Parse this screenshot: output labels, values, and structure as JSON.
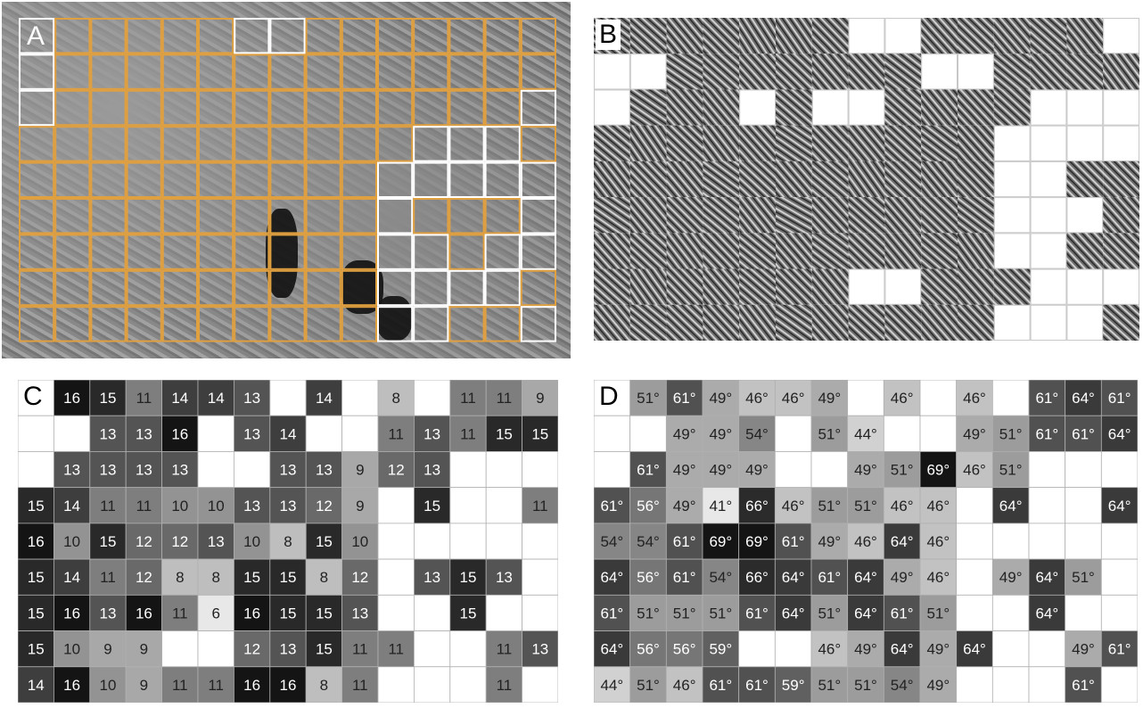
{
  "panels": {
    "A": {
      "label": "A"
    },
    "B": {
      "label": "B"
    },
    "C": {
      "label": "C"
    },
    "D": {
      "label": "D"
    }
  },
  "grid": {
    "rows": 9,
    "cols": 15
  },
  "panelA_outline": [
    "WOOOOOWWOOOOOOO",
    "WOOOOOOOOOOOOOO",
    "WOOOOOOOOOOOOOW",
    "OOOOOOOOOOOWWWO",
    "OOOOOOOOOOWWWWW",
    "OOOOOOOOOOWOOOW",
    "OOOOOOOOOOWWOWW",
    "OOOOOOOOOOWWWWO",
    "OOOOOOOOOOWWOOW"
  ],
  "panelB_mask": [
    "111111100111110",
    "001111111001111",
    "011101001111000",
    "111111111110000",
    "111111111110011",
    "111111111110001",
    "111111111110011",
    "111111100111000",
    "111111111110001"
  ],
  "panelB_angles": [
    [
      -52,
      -48,
      -40,
      -45,
      -33,
      -35,
      -44,
      -60,
      -50,
      -42,
      -46,
      -41,
      -48,
      -39,
      -44
    ],
    [
      -40,
      -38,
      -55,
      -48,
      -42,
      -46,
      -41,
      -43,
      -52,
      -47,
      -39,
      -50,
      -44,
      -45,
      -37
    ],
    [
      -45,
      -55,
      -42,
      -40,
      -44,
      -49,
      -51,
      -46,
      -48,
      -40,
      -43,
      -47,
      -45,
      -45,
      -45
    ],
    [
      -50,
      -35,
      -46,
      -38,
      -42,
      -55,
      -44,
      -40,
      -47,
      -52,
      -42,
      -39,
      -45,
      -45,
      -45
    ],
    [
      -38,
      -44,
      -40,
      -53,
      -47,
      -41,
      -49,
      -36,
      -46,
      -40,
      -44,
      -45,
      -45,
      -45,
      -45
    ],
    [
      -55,
      -40,
      -45,
      -50,
      -39,
      -60,
      -43,
      -48,
      -41,
      -46,
      -52,
      -38,
      -44,
      -45,
      -42
    ],
    [
      -42,
      -47,
      -38,
      -44,
      -50,
      -41,
      -52,
      -46,
      -40,
      -49,
      -37,
      -45,
      -45,
      -43,
      -45
    ],
    [
      -48,
      -36,
      -44,
      -41,
      -49,
      -45,
      -40,
      -45,
      -45,
      -46,
      -42,
      -45,
      -45,
      -45,
      -40
    ],
    [
      -40,
      -50,
      -46,
      -43,
      -38,
      -54,
      -42,
      -47,
      -45,
      -41,
      -44,
      -45,
      -45,
      -45,
      -48
    ]
  ],
  "panelC_values": [
    [
      "",
      "16",
      "15",
      "11",
      "14",
      "14",
      "13",
      "",
      "14",
      "",
      "8",
      "",
      "11",
      "11",
      "9"
    ],
    [
      "",
      "",
      "13",
      "13",
      "16",
      "",
      "13",
      "14",
      "",
      "",
      "11",
      "13",
      "11",
      "15",
      "15"
    ],
    [
      "",
      "13",
      "13",
      "13",
      "13",
      "",
      "",
      "13",
      "13",
      "9",
      "12",
      "13",
      "",
      "",
      ""
    ],
    [
      "15",
      "14",
      "11",
      "11",
      "10",
      "10",
      "13",
      "13",
      "12",
      "9",
      "",
      "15",
      "",
      "",
      "11"
    ],
    [
      "16",
      "10",
      "15",
      "12",
      "12",
      "13",
      "10",
      "8",
      "15",
      "10",
      "",
      "",
      "",
      "",
      ""
    ],
    [
      "15",
      "14",
      "11",
      "12",
      "8",
      "8",
      "15",
      "15",
      "8",
      "12",
      "",
      "13",
      "15",
      "13",
      ""
    ],
    [
      "15",
      "16",
      "13",
      "16",
      "11",
      "6",
      "16",
      "15",
      "15",
      "13",
      "",
      "",
      "15",
      "",
      ""
    ],
    [
      "15",
      "10",
      "9",
      "9",
      "",
      "",
      "12",
      "13",
      "15",
      "11",
      "11",
      "",
      "",
      "11",
      "13"
    ],
    [
      "14",
      "16",
      "10",
      "9",
      "11",
      "11",
      "16",
      "16",
      "8",
      "11",
      "",
      "",
      "",
      "11",
      ""
    ]
  ],
  "panelD_values": [
    [
      "",
      "51°",
      "61°",
      "49°",
      "46°",
      "46°",
      "49°",
      "",
      "46°",
      "",
      "46°",
      "",
      "61°",
      "64°",
      "61°"
    ],
    [
      "",
      "",
      "49°",
      "49°",
      "54°",
      "",
      "51°",
      "44°",
      "",
      "",
      "49°",
      "51°",
      "61°",
      "61°",
      "64°"
    ],
    [
      "",
      "61°",
      "49°",
      "49°",
      "49°",
      "",
      "",
      "49°",
      "51°",
      "69°",
      "46°",
      "51°",
      "",
      "",
      ""
    ],
    [
      "61°",
      "56°",
      "49°",
      "41°",
      "66°",
      "46°",
      "51°",
      "51°",
      "46°",
      "46°",
      "",
      "64°",
      "",
      "",
      "64°"
    ],
    [
      "54°",
      "54°",
      "61°",
      "69°",
      "69°",
      "61°",
      "49°",
      "46°",
      "64°",
      "46°",
      "",
      "",
      "",
      "",
      ""
    ],
    [
      "64°",
      "56°",
      "61°",
      "54°",
      "66°",
      "64°",
      "61°",
      "64°",
      "49°",
      "46°",
      "",
      "49°",
      "64°",
      "51°",
      ""
    ],
    [
      "61°",
      "51°",
      "51°",
      "51°",
      "61°",
      "64°",
      "51°",
      "64°",
      "61°",
      "51°",
      "",
      "",
      "64°",
      "",
      ""
    ],
    [
      "64°",
      "56°",
      "56°",
      "59°",
      "",
      "",
      "46°",
      "49°",
      "64°",
      "49°",
      "64°",
      "",
      "",
      "49°",
      "61°"
    ],
    [
      "44°",
      "51°",
      "46°",
      "61°",
      "61°",
      "59°",
      "51°",
      "51°",
      "54°",
      "49°",
      "",
      "",
      "",
      "61°",
      ""
    ]
  ],
  "colors": {
    "orange_outline": "#e0a040",
    "white_outline": "#ffffff",
    "grid_line": "#b0b0b0"
  }
}
